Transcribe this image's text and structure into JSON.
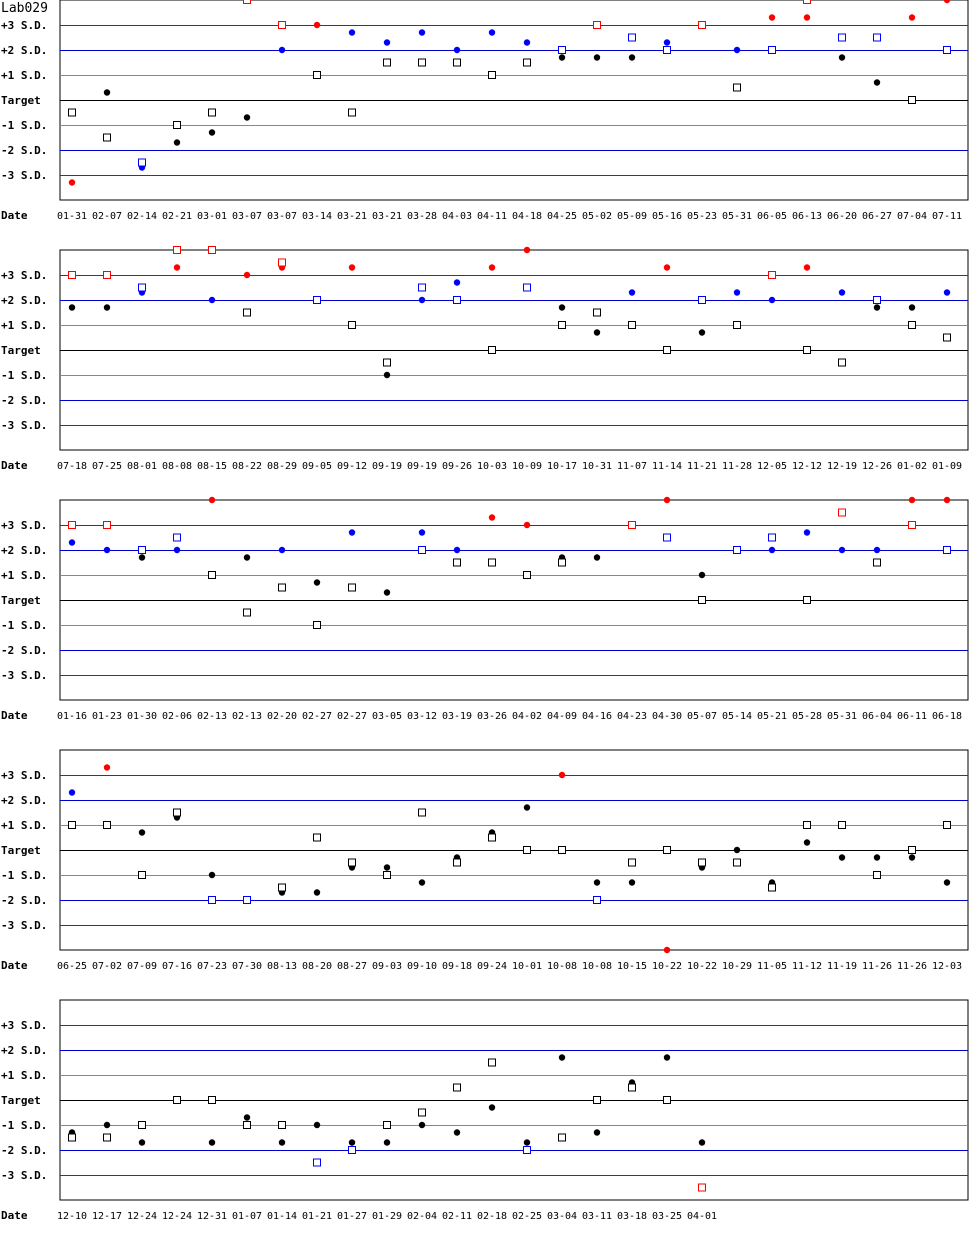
{
  "title": "Lab029",
  "chart_data": {
    "type": "scatter",
    "title": "Lab029",
    "y_levels": [
      "+3 S.D.",
      "+2 S.D.",
      "+1 S.D.",
      "Target",
      "-1 S.D.",
      "-2 S.D.",
      "-3 S.D."
    ],
    "y_values": [
      3,
      2,
      1,
      0,
      -1,
      -2,
      -3
    ],
    "x_axis_label": "Date",
    "ylim": [
      -4,
      4
    ],
    "colors": {
      "over3": "#ff0000",
      "over2": "#0000ff",
      "normal": "#000000",
      "line3": "#cc0000",
      "line2": "#0000cc",
      "line1": "#888888",
      "target": "#000000"
    },
    "legend": "none",
    "grid": true,
    "panels": [
      {
        "dates": [
          "01-31",
          "02-07",
          "02-14",
          "02-21",
          "03-01",
          "03-07",
          "03-07",
          "03-14",
          "03-21",
          "03-21",
          "03-28",
          "04-03",
          "04-11",
          "04-18",
          "04-25",
          "05-02",
          "05-09",
          "05-16",
          "05-23",
          "05-31",
          "06-05",
          "06-13",
          "06-20",
          "06-27",
          "07-04",
          "07-11"
        ],
        "series": [
          {
            "marker": "circle",
            "values": [
              -3.3,
              0.3,
              -2.7,
              -1.7,
              -1.3,
              -0.7,
              2.0,
              3.0,
              2.7,
              2.3,
              2.7,
              2.0,
              2.7,
              2.3,
              1.7,
              1.7,
              1.7,
              2.3,
              3.0,
              2.0,
              3.3,
              3.3,
              1.7,
              0.7,
              3.3,
              4.0
            ]
          },
          {
            "marker": "square",
            "values": [
              -0.5,
              -1.5,
              -2.5,
              -1.0,
              -0.5,
              4.0,
              3.0,
              1.0,
              -0.5,
              1.5,
              1.5,
              1.5,
              1.0,
              1.5,
              2.0,
              3.0,
              2.5,
              2.0,
              3.0,
              0.5,
              2.0,
              4.0,
              2.5,
              2.5,
              0.0,
              2.0
            ]
          }
        ]
      },
      {
        "dates": [
          "07-18",
          "07-25",
          "08-01",
          "08-08",
          "08-15",
          "08-22",
          "08-29",
          "09-05",
          "09-12",
          "09-19",
          "09-19",
          "09-26",
          "10-03",
          "10-09",
          "10-17",
          "10-31",
          "11-07",
          "11-14",
          "11-21",
          "11-28",
          "12-05",
          "12-12",
          "12-19",
          "12-26",
          "01-02",
          "01-09"
        ],
        "series": [
          {
            "marker": "circle",
            "values": [
              1.7,
              1.7,
              2.3,
              3.3,
              2.0,
              3.0,
              3.3,
              2.0,
              3.3,
              -1.0,
              2.0,
              2.7,
              3.3,
              4.0,
              1.7,
              0.7,
              2.3,
              3.3,
              0.7,
              2.3,
              2.0,
              3.3,
              2.3,
              1.7,
              1.7,
              2.3
            ]
          },
          {
            "marker": "square",
            "values": [
              3.0,
              3.0,
              2.5,
              4.0,
              4.0,
              1.5,
              3.5,
              2.0,
              1.0,
              -0.5,
              2.5,
              2.0,
              0.0,
              2.5,
              1.0,
              1.5,
              1.0,
              0.0,
              2.0,
              1.0,
              3.0,
              0.0,
              -0.5,
              2.0,
              1.0,
              0.5
            ]
          }
        ]
      },
      {
        "dates": [
          "01-16",
          "01-23",
          "01-30",
          "02-06",
          "02-13",
          "02-13",
          "02-20",
          "02-27",
          "02-27",
          "03-05",
          "03-12",
          "03-19",
          "03-26",
          "04-02",
          "04-09",
          "04-16",
          "04-23",
          "04-30",
          "05-07",
          "05-14",
          "05-21",
          "05-28",
          "05-31",
          "06-04",
          "06-11",
          "06-18"
        ],
        "series": [
          {
            "marker": "circle",
            "values": [
              2.3,
              2.0,
              1.7,
              2.0,
              4.0,
              1.7,
              2.0,
              0.7,
              2.7,
              0.3,
              2.7,
              2.0,
              3.3,
              3.0,
              1.7,
              1.7,
              3.0,
              4.0,
              1.0,
              2.0,
              2.0,
              2.7,
              2.0,
              2.0,
              4.0,
              4.0
            ]
          },
          {
            "marker": "square",
            "values": [
              3.0,
              3.0,
              2.0,
              2.5,
              1.0,
              -0.5,
              0.5,
              -1.0,
              0.5,
              null,
              2.0,
              1.5,
              1.5,
              1.0,
              1.5,
              null,
              3.0,
              2.5,
              0.0,
              2.0,
              2.5,
              0.0,
              3.5,
              1.5,
              3.0,
              2.0
            ]
          }
        ]
      },
      {
        "dates": [
          "06-25",
          "07-02",
          "07-09",
          "07-16",
          "07-23",
          "07-30",
          "08-13",
          "08-20",
          "08-27",
          "09-03",
          "09-10",
          "09-18",
          "09-24",
          "10-01",
          "10-08",
          "10-08",
          "10-15",
          "10-22",
          "10-22",
          "10-29",
          "11-05",
          "11-12",
          "11-19",
          "11-26",
          "11-26",
          "12-03"
        ],
        "series": [
          {
            "marker": "circle",
            "values": [
              2.3,
              3.3,
              0.7,
              1.3,
              -1.0,
              -2.0,
              -1.7,
              -1.7,
              -0.7,
              -0.7,
              -1.3,
              -0.3,
              0.7,
              1.7,
              3.0,
              -1.3,
              -1.3,
              -4.0,
              -0.7,
              0.0,
              -1.3,
              0.3,
              -0.3,
              -0.3,
              -0.3,
              -1.3
            ]
          },
          {
            "marker": "square",
            "values": [
              1.0,
              1.0,
              -1.0,
              1.5,
              -2.0,
              -2.0,
              -1.5,
              0.5,
              -0.5,
              -1.0,
              1.5,
              -0.5,
              0.5,
              0.0,
              0.0,
              -2.0,
              -0.5,
              0.0,
              -0.5,
              -0.5,
              -1.5,
              1.0,
              1.0,
              -1.0,
              0.0,
              1.0
            ]
          }
        ]
      },
      {
        "dates": [
          "12-10",
          "12-17",
          "12-24",
          "12-24",
          "12-31",
          "01-07",
          "01-14",
          "01-21",
          "01-27",
          "01-29",
          "02-04",
          "02-11",
          "02-18",
          "02-25",
          "03-04",
          "03-11",
          "03-18",
          "03-25",
          "04-01"
        ],
        "series": [
          {
            "marker": "circle",
            "values": [
              -1.3,
              -1.0,
              -1.7,
              0.0,
              -1.7,
              -0.7,
              -1.7,
              -1.0,
              -1.7,
              -1.7,
              -1.0,
              -1.3,
              -0.3,
              -1.7,
              1.7,
              -1.3,
              0.7,
              1.7,
              -1.7
            ]
          },
          {
            "marker": "square",
            "values": [
              -1.5,
              -1.5,
              -1.0,
              0.0,
              0.0,
              -1.0,
              -1.0,
              -2.5,
              -2.0,
              -1.0,
              -0.5,
              0.5,
              1.5,
              -2.0,
              -1.5,
              0.0,
              0.5,
              0.0,
              -3.5
            ]
          }
        ]
      }
    ]
  }
}
